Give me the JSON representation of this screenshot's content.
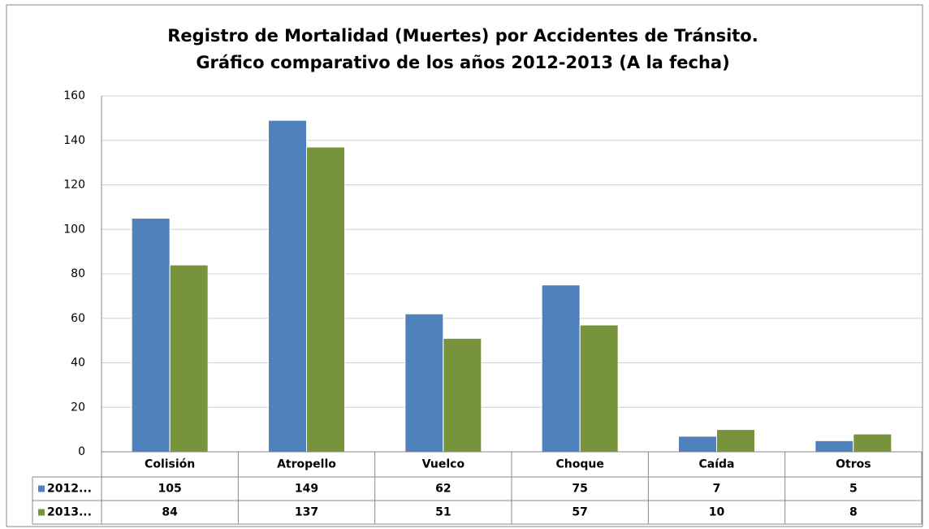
{
  "chart_data": {
    "type": "bar",
    "title": [
      "Registro de Mortalidad (Muertes) por Accidentes de Tránsito.",
      "Gráfico comparativo de los años 2012-2013 (A la fecha)"
    ],
    "categories": [
      "Colisión",
      "Atropello",
      "Vuelco",
      "Choque",
      "Caída",
      "Otros"
    ],
    "series": [
      {
        "name": "2012...",
        "color": "#4f81bd",
        "values": [
          105,
          149,
          62,
          75,
          7,
          5
        ]
      },
      {
        "name": "2013...",
        "color": "#77933c",
        "values": [
          84,
          137,
          51,
          57,
          10,
          8
        ]
      }
    ],
    "ylim": [
      0,
      160
    ],
    "yticks": [
      0,
      20,
      40,
      60,
      80,
      100,
      120,
      140,
      160
    ],
    "grid": true,
    "data_table": true
  }
}
